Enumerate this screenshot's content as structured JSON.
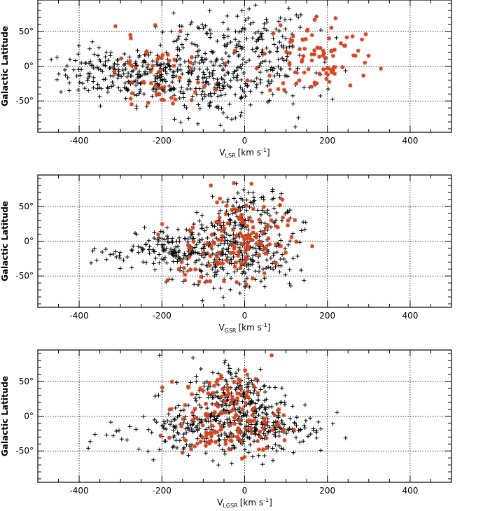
{
  "colors": {
    "background": "#ffffff",
    "axes": "#000000",
    "grid": "#000000",
    "marker_plus": "#000000",
    "marker_star": "#d44420"
  },
  "chart_data": [
    {
      "type": "scatter",
      "xlim": [
        -500,
        500
      ],
      "ylim": [
        -95,
        95
      ],
      "xticks": [
        -400,
        -200,
        0,
        200,
        400
      ],
      "yticks": [
        50,
        0,
        -50
      ],
      "xtick_labels": [
        "-400",
        "-200",
        "0",
        "200",
        "400"
      ],
      "ytick_labels": [
        "50°",
        "0°",
        "-50°"
      ],
      "ylabel": "Galactic Latitude",
      "xlabel_main": "V",
      "xlabel_sub": "LSR",
      "xlabel_units": "[km s",
      "xlabel_exp": "-1",
      "xlabel_close": "]",
      "grid": "dotted at ticks",
      "series": [
        {
          "marker": "plus",
          "x_range": [
            -500,
            310
          ],
          "y_range": [
            -88,
            88
          ],
          "clusters": [
            {
              "cx": -330,
              "cy": -10,
              "sx": 60,
              "sy": 18,
              "n": 130
            },
            {
              "cx": -200,
              "cy": -15,
              "sx": 60,
              "sy": 20,
              "n": 130
            },
            {
              "cx": -60,
              "cy": -30,
              "sx": 55,
              "sy": 25,
              "n": 120
            },
            {
              "cx": 40,
              "cy": 35,
              "sx": 60,
              "sy": 25,
              "n": 100
            },
            {
              "cx": -120,
              "cy": 20,
              "sx": 60,
              "sy": 25,
              "n": 80
            },
            {
              "cx": 80,
              "cy": -20,
              "sx": 70,
              "sy": 30,
              "n": 60
            }
          ]
        },
        {
          "marker": "star",
          "x_range": [
            -380,
            340
          ],
          "y_range": [
            -55,
            90
          ],
          "clusters": [
            {
              "cx": 180,
              "cy": 15,
              "sx": 70,
              "sy": 30,
              "n": 90
            },
            {
              "cx": -200,
              "cy": -20,
              "sx": 70,
              "sy": 30,
              "n": 45
            },
            {
              "cx": -280,
              "cy": 5,
              "sx": 40,
              "sy": 30,
              "n": 15
            }
          ]
        }
      ]
    },
    {
      "type": "scatter",
      "xlim": [
        -500,
        500
      ],
      "ylim": [
        -95,
        95
      ],
      "xticks": [
        -400,
        -200,
        0,
        200,
        400
      ],
      "yticks": [
        50,
        0,
        -50
      ],
      "xtick_labels": [
        "-400",
        "-200",
        "0",
        "200",
        "400"
      ],
      "ytick_labels": [
        "50°",
        "0°",
        "-50°"
      ],
      "ylabel": "Galactic Latitude",
      "xlabel_main": "V",
      "xlabel_sub": "GSR",
      "xlabel_units": "[km s",
      "xlabel_exp": "-1",
      "xlabel_close": "]",
      "grid": "dotted at ticks",
      "series": [
        {
          "marker": "plus",
          "x_range": [
            -470,
            220
          ],
          "y_range": [
            -88,
            88
          ],
          "clusters": [
            {
              "cx": -150,
              "cy": -15,
              "sx": 55,
              "sy": 18,
              "n": 170
            },
            {
              "cx": -20,
              "cy": -15,
              "sx": 60,
              "sy": 25,
              "n": 170
            },
            {
              "cx": 10,
              "cy": 35,
              "sx": 50,
              "sy": 25,
              "n": 110
            },
            {
              "cx": -300,
              "cy": -20,
              "sx": 60,
              "sy": 8,
              "n": 25
            },
            {
              "cx": 60,
              "cy": -30,
              "sx": 50,
              "sy": 25,
              "n": 60
            }
          ]
        },
        {
          "marker": "star",
          "x_range": [
            -250,
            170
          ],
          "y_range": [
            -65,
            90
          ],
          "clusters": [
            {
              "cx": 0,
              "cy": 5,
              "sx": 55,
              "sy": 30,
              "n": 110
            },
            {
              "cx": -120,
              "cy": -20,
              "sx": 50,
              "sy": 25,
              "n": 30
            }
          ]
        }
      ]
    },
    {
      "type": "scatter",
      "xlim": [
        -500,
        500
      ],
      "ylim": [
        -95,
        95
      ],
      "xticks": [
        -400,
        -200,
        0,
        200,
        400
      ],
      "yticks": [
        50,
        0,
        -50
      ],
      "xtick_labels": [
        "-400",
        "-200",
        "0",
        "200",
        "400"
      ],
      "ytick_labels": [
        "50°",
        "0°",
        "-50°"
      ],
      "ylabel": "Galactic Latitude",
      "xlabel_main": "V",
      "xlabel_sub": "LGSR",
      "xlabel_units": "[km s",
      "xlabel_exp": "-1",
      "xlabel_close": "]",
      "grid": "dotted at ticks",
      "series": [
        {
          "marker": "plus",
          "x_range": [
            -420,
            290
          ],
          "y_range": [
            -88,
            88
          ],
          "clusters": [
            {
              "cx": -40,
              "cy": -10,
              "sx": 65,
              "sy": 25,
              "n": 240
            },
            {
              "cx": -20,
              "cy": 35,
              "sx": 55,
              "sy": 25,
              "n": 120
            },
            {
              "cx": 80,
              "cy": -15,
              "sx": 60,
              "sy": 20,
              "n": 100
            },
            {
              "cx": -160,
              "cy": -15,
              "sx": 40,
              "sy": 20,
              "n": 60
            },
            {
              "cx": -320,
              "cy": -22,
              "sx": 55,
              "sy": 8,
              "n": 15
            }
          ]
        },
        {
          "marker": "star",
          "x_range": [
            -270,
            170
          ],
          "y_range": [
            -65,
            90
          ],
          "clusters": [
            {
              "cx": -30,
              "cy": 0,
              "sx": 60,
              "sy": 32,
              "n": 130
            },
            {
              "cx": -120,
              "cy": -30,
              "sx": 40,
              "sy": 20,
              "n": 20
            }
          ]
        }
      ]
    }
  ]
}
